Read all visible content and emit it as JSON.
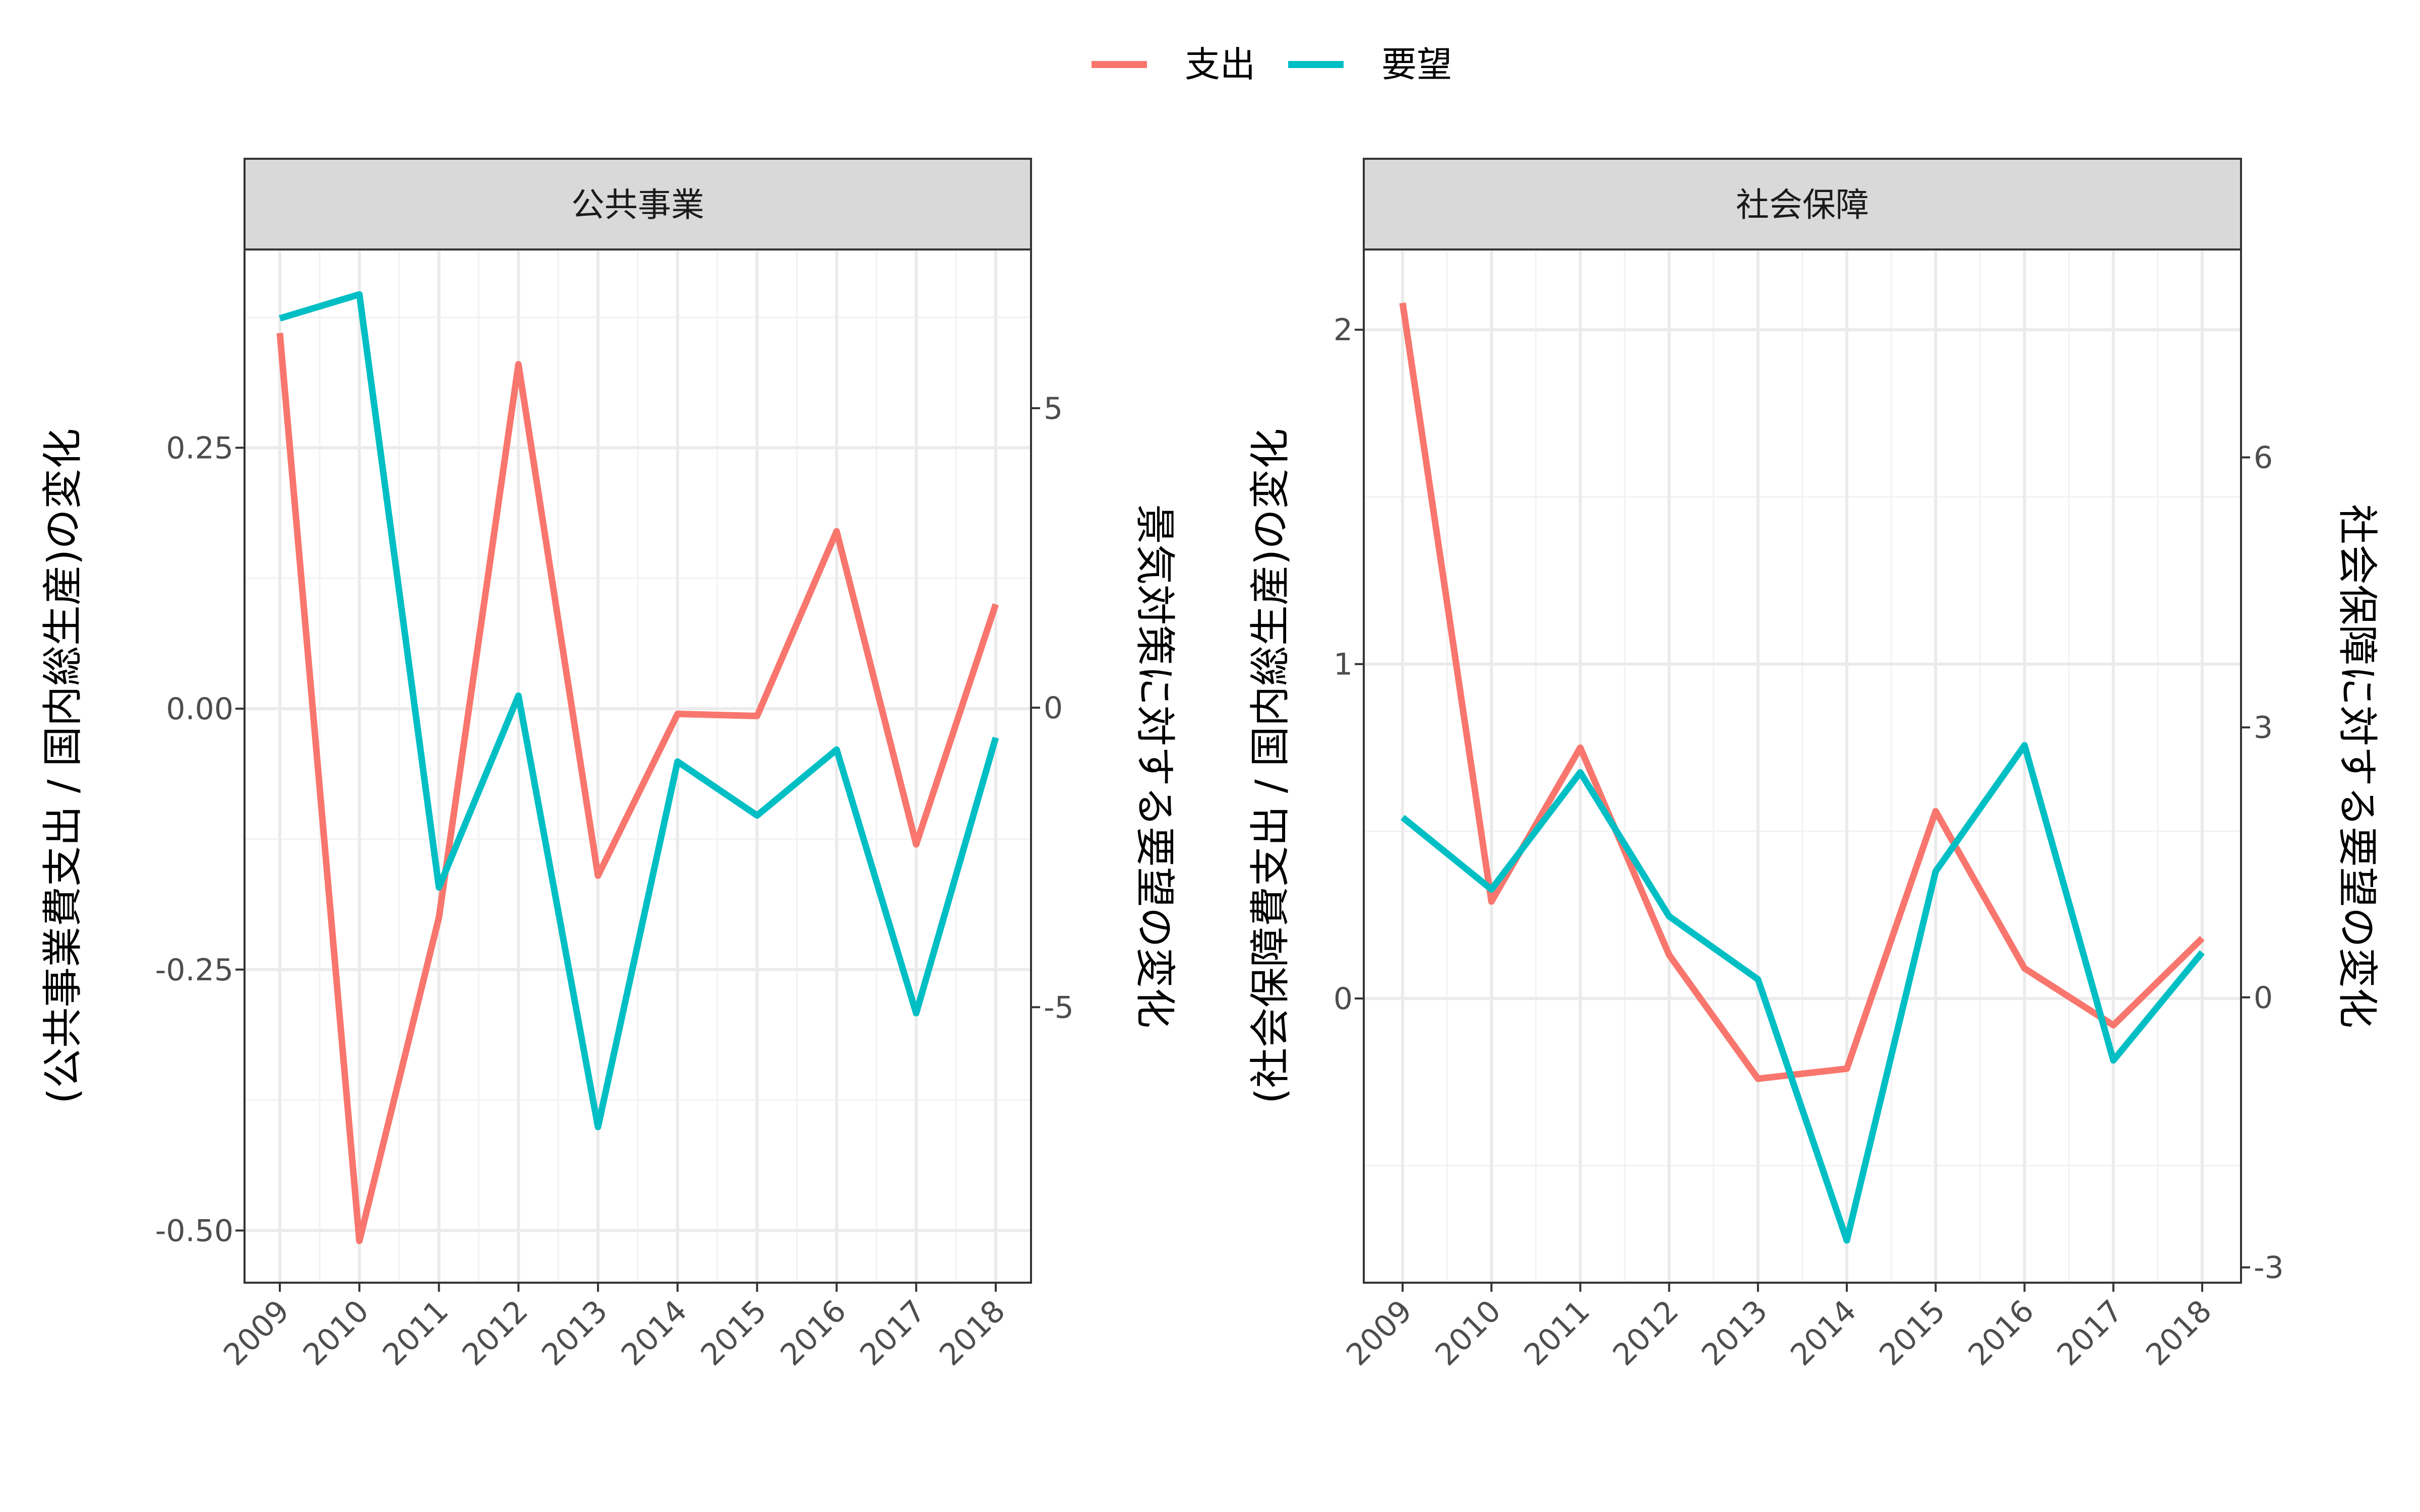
{
  "chart_data": {
    "type": "line",
    "x": [
      "2009",
      "2010",
      "2011",
      "2012",
      "2013",
      "2014",
      "2015",
      "2016",
      "2017",
      "2018"
    ],
    "legend": {
      "position": "top",
      "items": [
        {
          "label": "支出",
          "color": "#F8766D"
        },
        {
          "label": "要望",
          "color": "#00BFC4"
        }
      ]
    },
    "grid": true,
    "panels": [
      {
        "strip_label": "公共事業",
        "ylabel_left": "(公共事業費支出 / 国内総生産)の変化",
        "ylabel_right": "景気対策に対する要望の変化",
        "left_axis": {
          "range": [
            -0.55,
            0.44
          ],
          "ticks": [
            -0.5,
            -0.25,
            0,
            0.25
          ],
          "tick_labels": [
            "-0.50",
            "-0.25",
            "0.00",
            "0.25"
          ]
        },
        "right_axis": {
          "range": [
            -9.6,
            7.65
          ],
          "ticks": [
            -5,
            0,
            5
          ],
          "tick_labels": [
            "-5",
            "0",
            "5"
          ]
        },
        "series": [
          {
            "name": "支出",
            "axis": "left",
            "values": [
              0.36,
              -0.51,
              -0.2,
              0.33,
              -0.16,
              -0.005,
              -0.007,
              0.17,
              -0.13,
              0.1
            ]
          },
          {
            "name": "要望",
            "axis": "right",
            "values": [
              6.5,
              6.9,
              -3.0,
              0.2,
              -7.0,
              -0.9,
              -1.8,
              -0.7,
              -5.1,
              -0.5
            ]
          }
        ]
      },
      {
        "strip_label": "社会保障",
        "ylabel_left": "(社会保障費支出 / 国内総生産)の変化",
        "ylabel_right": "社会保障に対する要望の変化",
        "left_axis": {
          "range": [
            -0.85,
            2.24
          ],
          "ticks": [
            0,
            1,
            2
          ],
          "tick_labels": [
            "0",
            "1",
            "2"
          ]
        },
        "right_axis": {
          "range": [
            -3.17,
            8.31
          ],
          "ticks": [
            -3,
            0,
            3,
            6
          ],
          "tick_labels": [
            "-3",
            "0",
            "3",
            "6"
          ]
        },
        "series": [
          {
            "name": "支出",
            "axis": "left",
            "values": [
              2.08,
              0.29,
              0.75,
              0.13,
              -0.24,
              -0.21,
              0.56,
              0.09,
              -0.08,
              0.18
            ]
          },
          {
            "name": "要望",
            "axis": "right",
            "values": [
              2.0,
              1.2,
              2.5,
              0.9,
              0.2,
              -2.7,
              1.4,
              2.8,
              -0.7,
              0.5
            ]
          }
        ]
      }
    ]
  }
}
